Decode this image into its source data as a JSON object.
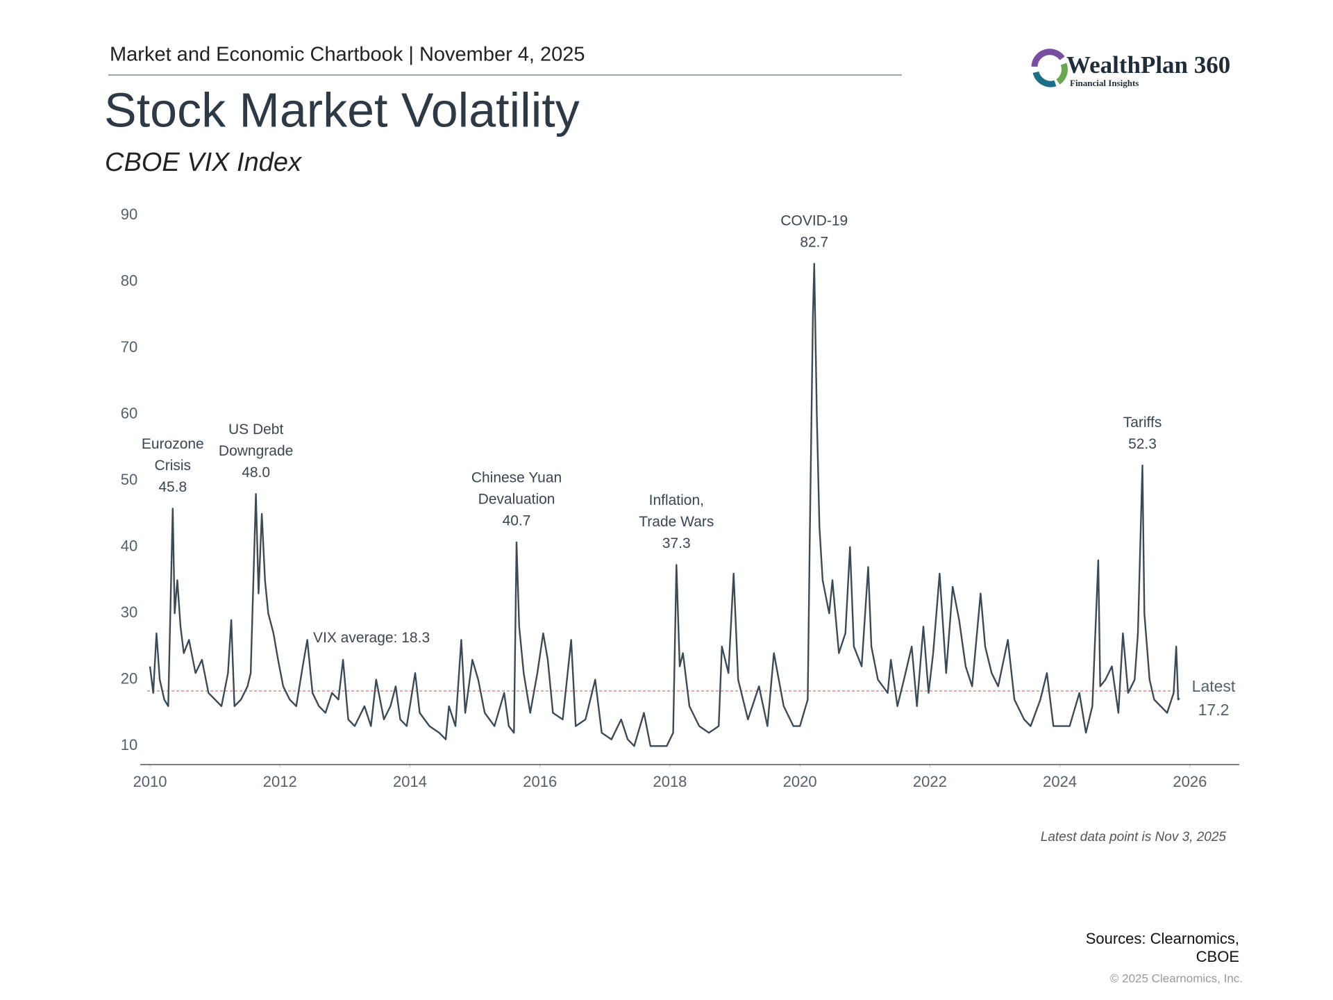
{
  "header": {
    "text": "Market and Economic Chartbook | November 4, 2025"
  },
  "logo": {
    "name": "WealthPlan 360",
    "tagline": "Financial Insights"
  },
  "chart_data": {
    "type": "line",
    "title": "Stock Market Volatility",
    "subtitle": "CBOE VIX Index",
    "color": "#3b4a57",
    "x": [
      2010.0,
      2010.05,
      2010.1,
      2010.15,
      2010.22,
      2010.28,
      2010.35,
      2010.38,
      2010.42,
      2010.47,
      2010.52,
      2010.6,
      2010.7,
      2010.8,
      2010.9,
      2011.0,
      2011.1,
      2011.2,
      2011.25,
      2011.3,
      2011.4,
      2011.5,
      2011.55,
      2011.63,
      2011.67,
      2011.72,
      2011.77,
      2011.82,
      2011.9,
      2011.97,
      2012.05,
      2012.15,
      2012.25,
      2012.35,
      2012.42,
      2012.5,
      2012.6,
      2012.7,
      2012.8,
      2012.9,
      2012.97,
      2013.05,
      2013.15,
      2013.3,
      2013.4,
      2013.48,
      2013.6,
      2013.7,
      2013.78,
      2013.85,
      2013.95,
      2014.08,
      2014.15,
      2014.3,
      2014.45,
      2014.55,
      2014.6,
      2014.7,
      2014.79,
      2014.85,
      2014.96,
      2015.05,
      2015.15,
      2015.3,
      2015.45,
      2015.52,
      2015.6,
      2015.64,
      2015.68,
      2015.75,
      2015.85,
      2015.96,
      2016.05,
      2016.12,
      2016.2,
      2016.35,
      2016.48,
      2016.55,
      2016.7,
      2016.85,
      2016.95,
      2017.1,
      2017.25,
      2017.35,
      2017.45,
      2017.6,
      2017.7,
      2017.85,
      2017.95,
      2018.05,
      2018.1,
      2018.15,
      2018.2,
      2018.3,
      2018.45,
      2018.6,
      2018.75,
      2018.8,
      2018.9,
      2018.98,
      2019.05,
      2019.2,
      2019.37,
      2019.5,
      2019.6,
      2019.75,
      2019.9,
      2020.0,
      2020.12,
      2020.15,
      2020.2,
      2020.22,
      2020.26,
      2020.3,
      2020.35,
      2020.45,
      2020.5,
      2020.6,
      2020.7,
      2020.77,
      2020.83,
      2020.95,
      2021.05,
      2021.1,
      2021.2,
      2021.35,
      2021.4,
      2021.5,
      2021.6,
      2021.72,
      2021.8,
      2021.9,
      2021.98,
      2022.05,
      2022.15,
      2022.25,
      2022.35,
      2022.45,
      2022.55,
      2022.65,
      2022.78,
      2022.85,
      2022.95,
      2023.05,
      2023.2,
      2023.3,
      2023.45,
      2023.55,
      2023.7,
      2023.8,
      2023.9,
      2024.0,
      2024.15,
      2024.3,
      2024.4,
      2024.5,
      2024.59,
      2024.62,
      2024.7,
      2024.8,
      2024.9,
      2024.97,
      2025.05,
      2025.15,
      2025.2,
      2025.27,
      2025.3,
      2025.38,
      2025.45,
      2025.55,
      2025.65,
      2025.75,
      2025.79,
      2025.82,
      2025.84
    ],
    "values": [
      22,
      18,
      27,
      20,
      17,
      16,
      45.8,
      30,
      35,
      28,
      24,
      26,
      21,
      23,
      18,
      17,
      16,
      21,
      29,
      16,
      17,
      19,
      21,
      48,
      33,
      45,
      35,
      30,
      27,
      23,
      19,
      17,
      16,
      22,
      26,
      18,
      16,
      15,
      18,
      17,
      23,
      14,
      13,
      16,
      13,
      20,
      14,
      16,
      19,
      14,
      13,
      21,
      15,
      13,
      12,
      11,
      16,
      13,
      26,
      15,
      23,
      20,
      15,
      13,
      18,
      13,
      12,
      40.7,
      28,
      21,
      15,
      21,
      27,
      23,
      15,
      14,
      26,
      13,
      14,
      20,
      12,
      11,
      14,
      11,
      10,
      15,
      10,
      10,
      10,
      12,
      37.3,
      22,
      24,
      16,
      13,
      12,
      13,
      25,
      21,
      36,
      20,
      14,
      19,
      13,
      24,
      16,
      13,
      13,
      17,
      40,
      75,
      82.7,
      60,
      43,
      35,
      30,
      35,
      24,
      27,
      40,
      25,
      22,
      37,
      25,
      20,
      18,
      23,
      16,
      20,
      25,
      16,
      28,
      18,
      24,
      36,
      21,
      34,
      29,
      22,
      19,
      33,
      25,
      21,
      19,
      26,
      17,
      14,
      13,
      17,
      21,
      13,
      13,
      13,
      18,
      12,
      16,
      38,
      19,
      20,
      22,
      15,
      27,
      18,
      20,
      27,
      52.3,
      30,
      20,
      17,
      16,
      15,
      18,
      25,
      17,
      17.2
    ],
    "xlim": [
      2009.85,
      2026.76
    ],
    "ylim": [
      7.2,
      92
    ],
    "xticks": [
      2010,
      2012,
      2014,
      2016,
      2018,
      2020,
      2022,
      2024,
      2026
    ],
    "yticks": [
      10,
      20,
      30,
      40,
      50,
      60,
      70,
      80,
      90
    ],
    "average": {
      "label": "VIX average:",
      "value": 18.3,
      "color": "#d98c8c"
    },
    "latest": {
      "label": "Latest",
      "value": 17.2
    },
    "annotations": [
      {
        "lines": [
          "Eurozone",
          "Crisis"
        ],
        "x": 2010.35,
        "value": 45.8
      },
      {
        "lines": [
          "US Debt",
          "Downgrade"
        ],
        "x": 2011.63,
        "value": 48,
        "value_label": "48.0"
      },
      {
        "lines": [
          "Chinese Yuan",
          "Devaluation"
        ],
        "x": 2015.64,
        "value": 40.7
      },
      {
        "lines": [
          "Inflation,",
          "Trade Wars"
        ],
        "x": 2018.1,
        "value": 37.3
      },
      {
        "lines": [
          "COVID-19"
        ],
        "x": 2020.22,
        "value": 82.7
      },
      {
        "lines": [
          "Tariffs"
        ],
        "x": 2025.27,
        "value": 52.3
      }
    ],
    "note": "Latest data point is Nov 3, 2025"
  },
  "footer": {
    "sources": [
      "Sources: Clearnomics,",
      "CBOE"
    ],
    "copyright": "© 2025 Clearnomics, Inc."
  }
}
